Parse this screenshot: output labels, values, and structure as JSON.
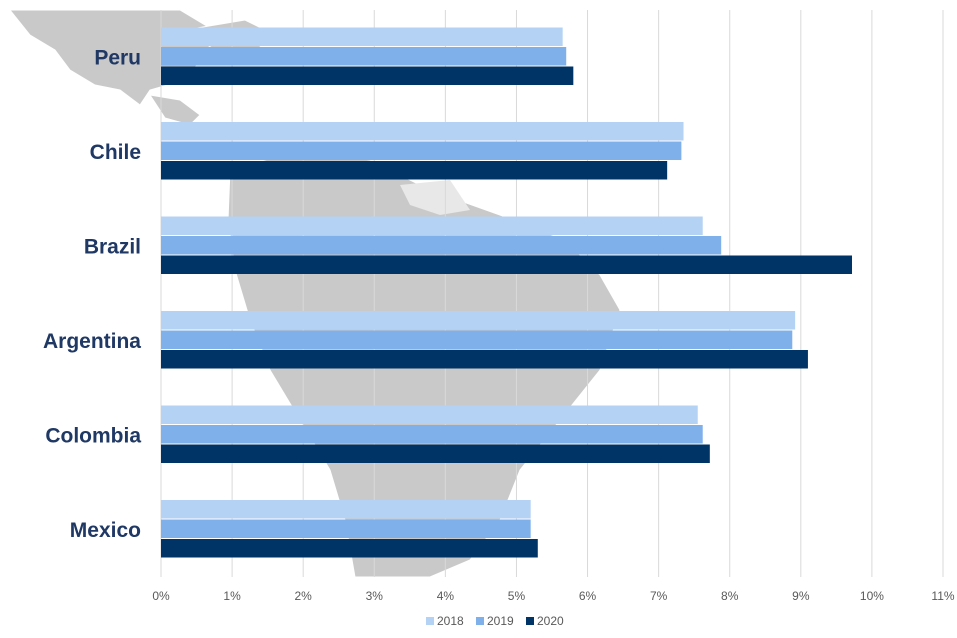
{
  "chart_data": {
    "type": "bar",
    "orientation": "horizontal",
    "title": "",
    "xlabel": "",
    "ylabel": "",
    "categories": [
      "Peru",
      "Chile",
      "Brazil",
      "Argentina",
      "Colombia",
      "Mexico"
    ],
    "series": [
      {
        "name": "2018",
        "color": "#b4d2f3",
        "values": [
          5.65,
          7.35,
          7.62,
          8.92,
          7.55,
          5.2
        ]
      },
      {
        "name": "2019",
        "color": "#7fb0ea",
        "values": [
          5.7,
          7.32,
          7.88,
          8.88,
          7.62,
          5.2
        ]
      },
      {
        "name": "2020",
        "color": "#003366",
        "values": [
          5.8,
          7.12,
          9.72,
          9.1,
          7.72,
          5.3
        ]
      }
    ],
    "xlim": [
      0,
      11
    ],
    "x_ticks": [
      "0%",
      "1%",
      "2%",
      "3%",
      "4%",
      "5%",
      "6%",
      "7%",
      "8%",
      "9%",
      "10%",
      "11%"
    ],
    "grid": true,
    "legend_position": "bottom",
    "background": "map of Latin America in grey"
  }
}
